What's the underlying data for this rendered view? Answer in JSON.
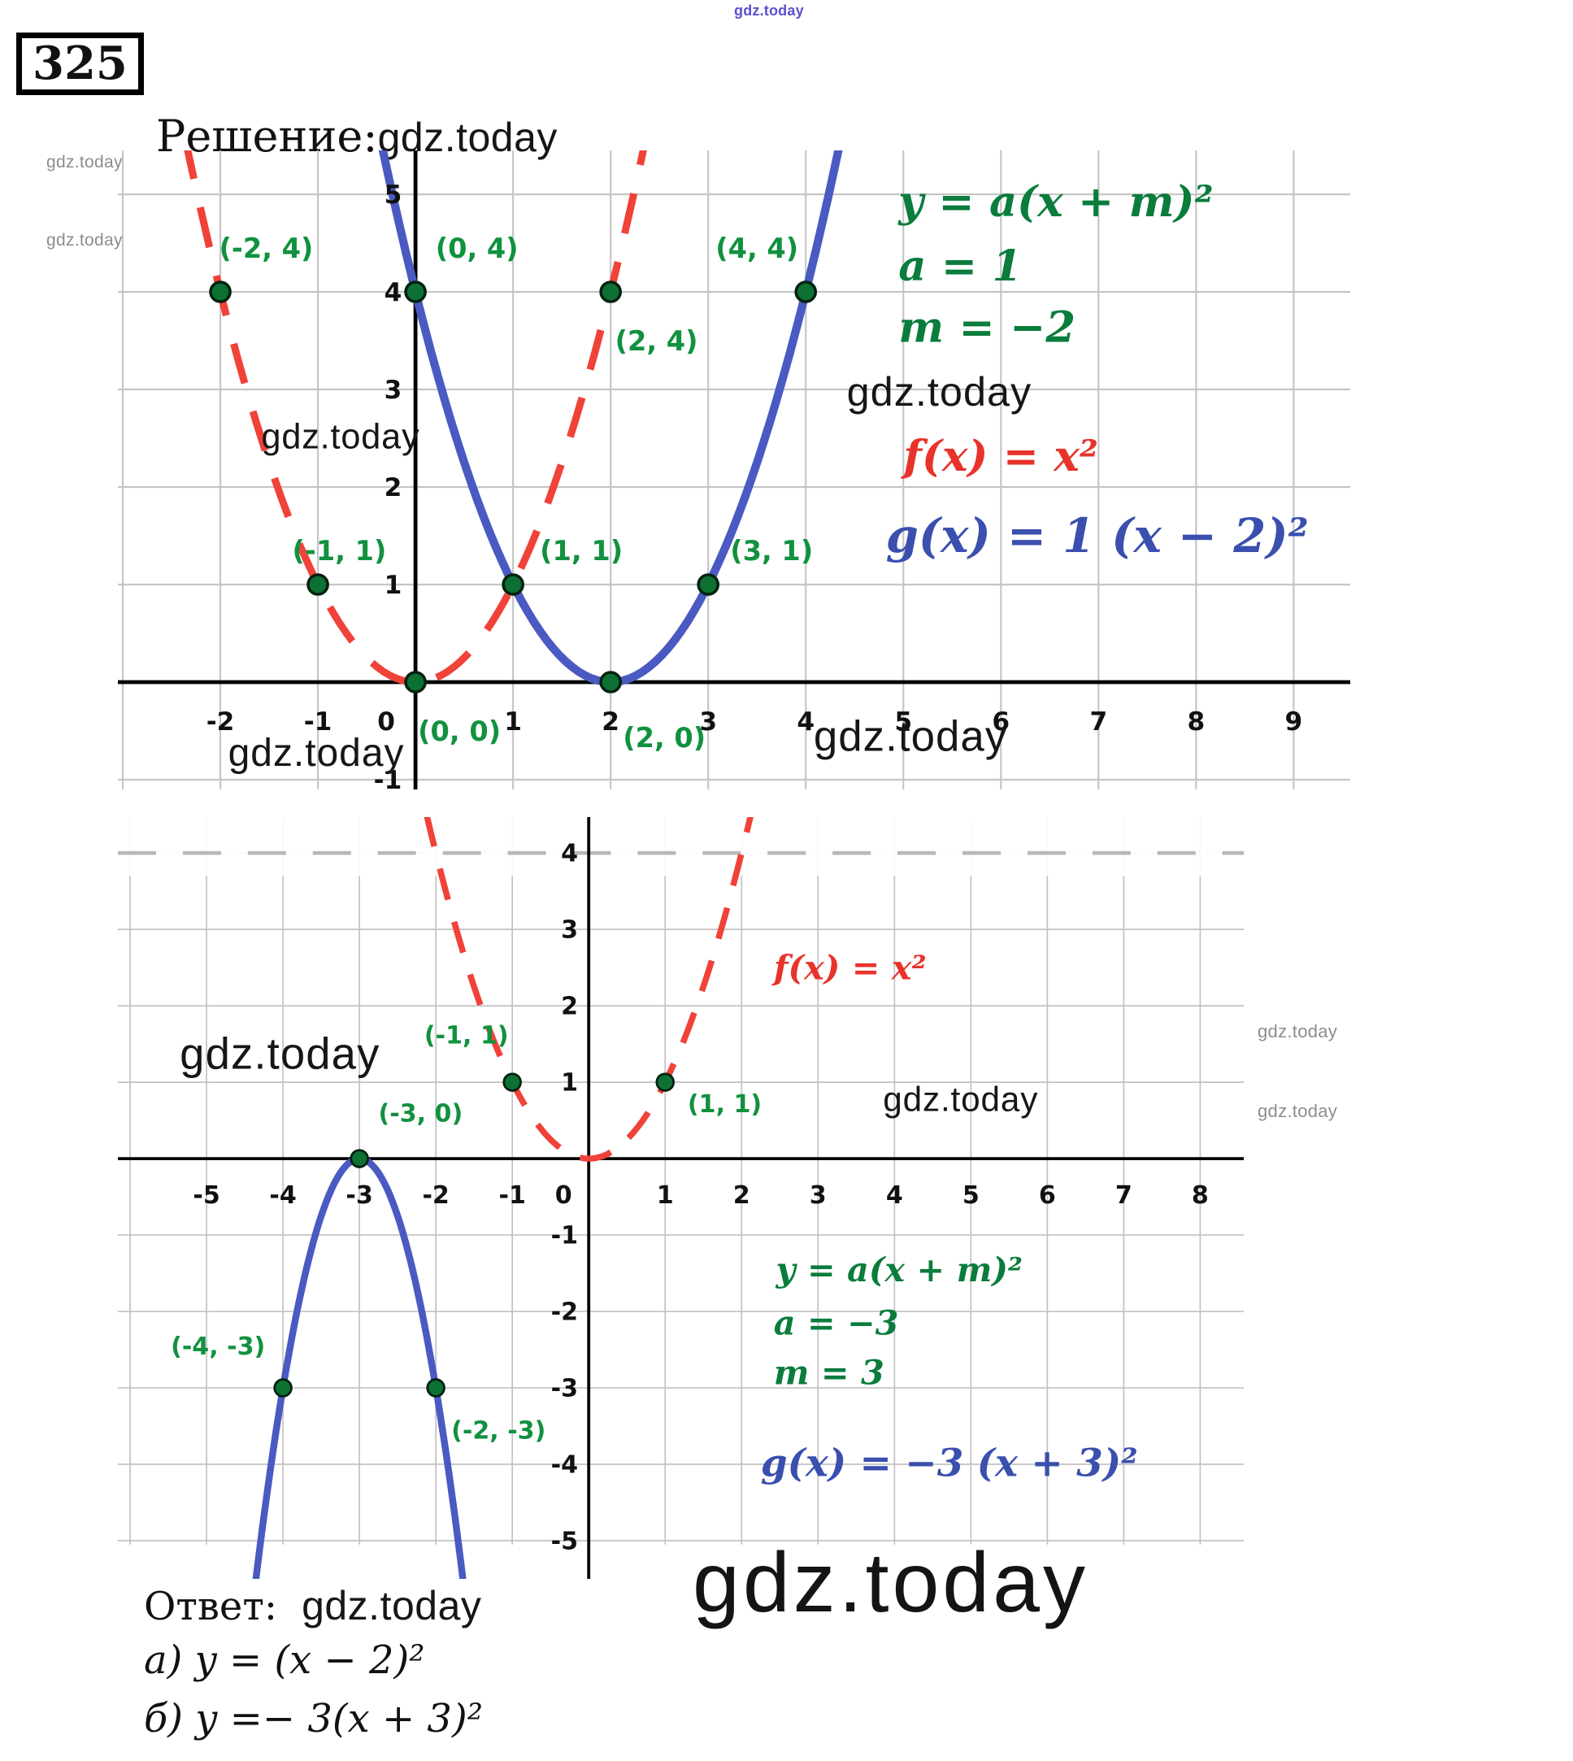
{
  "page": {
    "problem_number": "325",
    "solution_label": "Решение:",
    "watermark": "gdz.today",
    "answer_label": "Ответ:",
    "answers": [
      "а) y = (x − 2)²",
      "б) y =− 3(x + 3)²"
    ]
  },
  "chart_data": [
    {
      "id": "top",
      "type": "line",
      "title": "",
      "xlim": [
        -3.05,
        9.58
      ],
      "ylim": [
        -1.1,
        5.45
      ],
      "grid": true,
      "grid_color": "#c5c5c5",
      "x_ticks": [
        -2,
        -1,
        0,
        1,
        2,
        3,
        4,
        5,
        6,
        7,
        8,
        9
      ],
      "y_ticks": [
        5,
        4,
        3,
        2,
        1,
        -1
      ],
      "tick_font": 0.26,
      "x_tick_y": -0.4,
      "zero_tick_x": -0.3,
      "label_color": "#11913f",
      "label_font": 0.28,
      "marked_point_style": {
        "fill": "#0e7134",
        "stroke": "#03220f",
        "r": 0.1
      },
      "series": [
        {
          "name": "f(x) = x²",
          "color": "#f04238",
          "dashed": true,
          "width": 0.075,
          "parabola": {
            "a": 1,
            "h": 0,
            "k": 0
          },
          "x_range": [
            -2.36,
            2.36
          ],
          "points": [
            [
              -2,
              4
            ],
            [
              -1,
              1
            ],
            [
              0,
              0
            ],
            [
              1,
              1
            ],
            [
              2,
              4
            ]
          ]
        },
        {
          "name": "g(x) = 1 (x − 2)²",
          "color": "#4a5ac2",
          "dashed": false,
          "width": 0.085,
          "parabola": {
            "a": 1,
            "h": 2,
            "k": 0
          },
          "x_range": [
            -0.36,
            4.36
          ],
          "points": [
            [
              0,
              4
            ],
            [
              2,
              0
            ],
            [
              3,
              1
            ],
            [
              4,
              4
            ]
          ]
        }
      ],
      "point_labels": [
        {
          "text": "(-2, 4)",
          "x": -1.53,
          "y": 4.45
        },
        {
          "text": "(0, 4)",
          "x": 0.63,
          "y": 4.45
        },
        {
          "text": "(2, 4)",
          "x": 2.47,
          "y": 3.5
        },
        {
          "text": "(4, 4)",
          "x": 3.5,
          "y": 4.45
        },
        {
          "text": "(-1, 1)",
          "x": -0.78,
          "y": 1.35
        },
        {
          "text": "(1, 1)",
          "x": 1.7,
          "y": 1.35
        },
        {
          "text": "(3, 1)",
          "x": 3.65,
          "y": 1.35
        },
        {
          "text": "(0, 0)",
          "x": 0.45,
          "y": -0.5
        },
        {
          "text": "(2, 0)",
          "x": 2.55,
          "y": -0.57
        }
      ],
      "formulas": [
        {
          "text": "y = a(x + m)²",
          "x": 4.95,
          "y": 4.93,
          "color": "#0a7c3c",
          "size": 0.44
        },
        {
          "text": "a = 1",
          "x": 4.95,
          "y": 4.27,
          "color": "#0a7c3c",
          "size": 0.44
        },
        {
          "text": "m = −2",
          "x": 4.95,
          "y": 3.64,
          "color": "#0a7c3c",
          "size": 0.44
        },
        {
          "text": "f(x) = x²",
          "x": 5.0,
          "y": 2.32,
          "color": "#e8332b",
          "size": 0.44
        },
        {
          "text": "g(x) = 1 (x − 2)²",
          "x": 4.82,
          "y": 1.5,
          "color": "#3a4fae",
          "size": 0.48
        }
      ],
      "watermarks": [
        {
          "text": "gdz.today",
          "x": 4.42,
          "y": 2.98,
          "size": 0.42
        },
        {
          "text": "gdz.today",
          "x": -1.58,
          "y": 2.52,
          "size": 0.36
        },
        {
          "text": "gdz.today",
          "x": -1.92,
          "y": -0.72,
          "size": 0.4
        },
        {
          "text": "gdz.today",
          "x": 4.08,
          "y": -0.55,
          "size": 0.44
        }
      ]
    },
    {
      "id": "bottom",
      "type": "line",
      "title": "",
      "xlim": [
        -6.16,
        8.57
      ],
      "ylim": [
        -5.5,
        4.47
      ],
      "grid_y_extent": [
        -5.05,
        4.47
      ],
      "grid": true,
      "grid_color": "#c2c2c2",
      "x_ticks": [
        -5,
        -4,
        -3,
        -2,
        -1,
        0,
        1,
        2,
        3,
        4,
        5,
        6,
        7,
        8
      ],
      "y_ticks": [
        4,
        3,
        2,
        1,
        -1,
        -2,
        -3,
        -4,
        -5
      ],
      "tick_font": 0.32,
      "x_tick_y": -0.47,
      "zero_tick_x": -0.33,
      "label_color": "#11913f",
      "label_font": 0.32,
      "marked_point_style": {
        "fill": "#0e7134",
        "stroke": "#03220f",
        "r": 0.11
      },
      "bands": [
        {
          "y0": 3.7,
          "y1": 4.62,
          "fill": "#ffffff",
          "opacity": 0.9
        }
      ],
      "dashed_gridline_y": 4,
      "series": [
        {
          "name": "f(x) = x²",
          "color": "#f04238",
          "dashed": true,
          "width": 0.08,
          "parabola": {
            "a": 1,
            "h": 0,
            "k": 0
          },
          "x_range": [
            -2.12,
            2.12
          ],
          "points": [
            [
              -1,
              1
            ],
            [
              1,
              1
            ]
          ]
        },
        {
          "name": "g(x) = −3 (x + 3)²",
          "color": "#4a5ac2",
          "dashed": false,
          "width": 0.09,
          "parabola": {
            "a": -3,
            "h": -3,
            "k": 0
          },
          "x_range": [
            -4.45,
            -1.55
          ],
          "points": [
            [
              -3,
              0
            ],
            [
              -4,
              -3
            ],
            [
              -2,
              -3
            ]
          ]
        }
      ],
      "point_labels": [
        {
          "text": "(-1, 1)",
          "x": -1.6,
          "y": 1.62
        },
        {
          "text": "(1, 1)",
          "x": 1.78,
          "y": 0.72
        },
        {
          "text": "(-3, 0)",
          "x": -2.2,
          "y": 0.6
        },
        {
          "text": "(-4, -3)",
          "x": -4.85,
          "y": -2.45
        },
        {
          "text": "(-2, -3)",
          "x": -1.18,
          "y": -3.55
        }
      ],
      "formulas": [
        {
          "text": "f(x) = x²",
          "x": 2.42,
          "y": 2.5,
          "color": "#e8332b",
          "size": 0.44
        },
        {
          "text": "y = a(x + m)²",
          "x": 2.45,
          "y": -1.45,
          "color": "#0a7c3c",
          "size": 0.44
        },
        {
          "text": "a = −3",
          "x": 2.42,
          "y": -2.15,
          "color": "#0a7c3c",
          "size": 0.44
        },
        {
          "text": "m = 3",
          "x": 2.42,
          "y": -2.8,
          "color": "#0a7c3c",
          "size": 0.44
        },
        {
          "text": "g(x) = −3 (x + 3)²",
          "x": 2.25,
          "y": -3.98,
          "color": "#3a4fae",
          "size": 0.5
        }
      ],
      "watermarks": [
        {
          "text": "gdz.today",
          "x": 3.85,
          "y": 0.78,
          "size": 0.45
        },
        {
          "text": "gdz.today",
          "x": -5.35,
          "y": 1.38,
          "size": 0.58
        }
      ]
    }
  ]
}
